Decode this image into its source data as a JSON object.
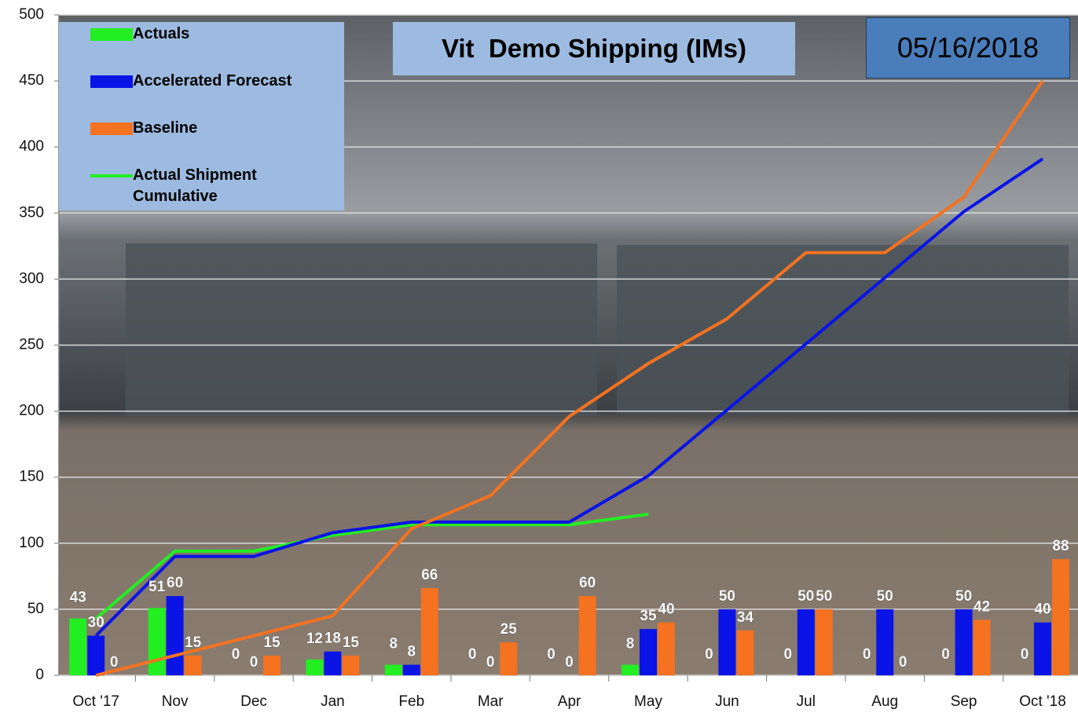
{
  "chart_data": {
    "type": "bar",
    "title": "Vit  Demo Shipping (IMs)",
    "annotation": "05/16/2018",
    "categories": [
      "Oct '17",
      "Nov",
      "Dec",
      "Jan",
      "Feb",
      "Mar",
      "Apr",
      "May",
      "Jun",
      "Jul",
      "Aug",
      "Sep",
      "Oct '18"
    ],
    "series": [
      {
        "name": "Actuals",
        "type": "bar",
        "color": "#22ee22",
        "values": [
          43,
          51,
          0,
          12,
          8,
          0,
          0,
          8,
          0,
          0,
          0,
          0,
          0
        ]
      },
      {
        "name": "Accelerated Forecast",
        "type": "bar",
        "color": "#0a14e6",
        "values": [
          30,
          60,
          0,
          18,
          8,
          0,
          0,
          35,
          50,
          50,
          50,
          50,
          40
        ]
      },
      {
        "name": "Baseline",
        "type": "bar",
        "color": "#f47220",
        "values": [
          0,
          15,
          15,
          15,
          66,
          25,
          60,
          40,
          34,
          50,
          0,
          42,
          88
        ]
      },
      {
        "name": "Actual Shipment Cumulative",
        "type": "line",
        "color": "#22ee22",
        "values": [
          43,
          94,
          94,
          106,
          114,
          114,
          114,
          122,
          null,
          null,
          null,
          null,
          null
        ]
      },
      {
        "type": "line",
        "color": "#0a14e6",
        "values": [
          30,
          90,
          90,
          108,
          116,
          116,
          116,
          151,
          201,
          251,
          301,
          351,
          391
        ]
      },
      {
        "type": "line",
        "color": "#f47220",
        "values": [
          0,
          15,
          30,
          45,
          111,
          136,
          196,
          236,
          270,
          320,
          320,
          362,
          450
        ]
      }
    ],
    "ylim": [
      0,
      500
    ],
    "yticks": [
      0,
      50,
      100,
      150,
      200,
      250,
      300,
      350,
      400,
      450,
      500
    ],
    "grid": true
  }
}
